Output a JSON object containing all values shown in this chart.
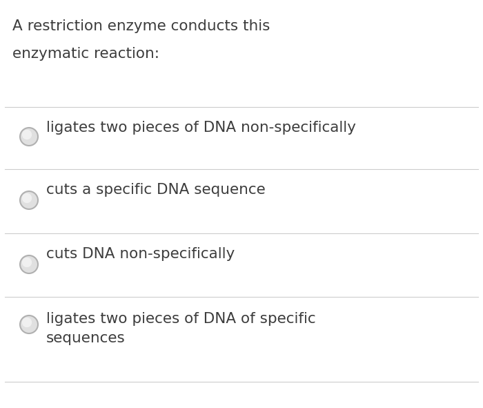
{
  "title_line1": "A restriction enzyme conducts this",
  "title_line2": "enzymatic reaction:",
  "options": [
    "ligates two pieces of DNA non-specifically",
    "cuts a specific DNA sequence",
    "cuts DNA non-specifically",
    "ligates two pieces of DNA of specific\nsequences"
  ],
  "background_color": "#ffffff",
  "text_color": "#3d3d3d",
  "line_color": "#cccccc",
  "radio_edge_color": "#b0b0b0",
  "radio_face_color": "#e0e0e0",
  "title_fontsize": 15.5,
  "option_fontsize": 15.5,
  "fig_width": 7.0,
  "fig_height": 5.91,
  "dpi": 100
}
